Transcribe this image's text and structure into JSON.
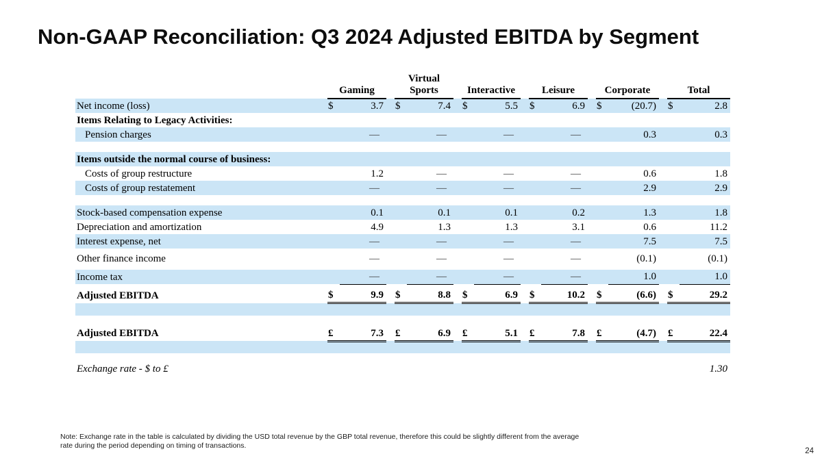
{
  "title": "Non-GAAP Reconciliation: Q3 2024 Adjusted EBITDA by Segment",
  "footnote": "Note: Exchange rate in the table is calculated by dividing the USD total revenue by the GBP total revenue, therefore this could be slightly different from the average rate during the period depending on timing of transactions.",
  "page_number": "24",
  "colors": {
    "row_shade": "#cbe5f6",
    "text": "#000000"
  },
  "table": {
    "columns": [
      {
        "name": "gaming",
        "lines": [
          "Gaming"
        ]
      },
      {
        "name": "virtual-sports",
        "lines": [
          "Virtual",
          "Sports"
        ]
      },
      {
        "name": "interactive",
        "lines": [
          "Interactive"
        ]
      },
      {
        "name": "leisure",
        "lines": [
          "Leisure"
        ]
      },
      {
        "name": "corporate",
        "lines": [
          "Corporate"
        ]
      },
      {
        "name": "total",
        "lines": [
          "Total"
        ]
      }
    ],
    "rows": [
      {
        "name": "net-income",
        "label": "Net income (loss)",
        "shade": true,
        "cur": "$",
        "cells": [
          "3.7",
          "7.4",
          "5.5",
          "6.9",
          "(20.7)",
          "2.8"
        ]
      },
      {
        "name": "legacy-header",
        "label": "Items Relating to Legacy Activities:",
        "bold": true,
        "shade": false,
        "cells": [
          "",
          "",
          "",
          "",
          "",
          ""
        ]
      },
      {
        "name": "pension-charges",
        "label": "Pension charges",
        "indent": true,
        "shade": true,
        "cells": [
          "—",
          "—",
          "—",
          "—",
          "0.3",
          "0.3"
        ]
      },
      {
        "type": "gap",
        "height": 15
      },
      {
        "name": "outside-header",
        "label": "Items outside the normal course of business:",
        "bold": true,
        "shade": true,
        "cells": [
          "",
          "",
          "",
          "",
          "",
          ""
        ]
      },
      {
        "name": "group-restructure",
        "label": "Costs of group restructure",
        "indent": true,
        "shade": false,
        "cells": [
          "1.2",
          "—",
          "—",
          "—",
          "0.6",
          "1.8"
        ]
      },
      {
        "name": "group-restatement",
        "label": "Costs of group restatement",
        "indent": true,
        "shade": true,
        "cells": [
          "—",
          "—",
          "—",
          "—",
          "2.9",
          "2.9"
        ]
      },
      {
        "type": "gap",
        "height": 15
      },
      {
        "name": "stock-comp",
        "label": "Stock-based compensation expense",
        "shade": true,
        "cells": [
          "0.1",
          "0.1",
          "0.1",
          "0.2",
          "1.3",
          "1.8"
        ]
      },
      {
        "name": "depreciation-amortization",
        "label": "Depreciation and amortization",
        "shade": false,
        "cells": [
          "4.9",
          "1.3",
          "1.3",
          "3.1",
          "0.6",
          "11.2"
        ]
      },
      {
        "name": "interest-expense",
        "label": "Interest expense, net",
        "shade": true,
        "cells": [
          "—",
          "—",
          "—",
          "—",
          "7.5",
          "7.5"
        ]
      },
      {
        "type": "gap",
        "height": 4
      },
      {
        "name": "other-finance-income",
        "label": "Other finance income",
        "shade": false,
        "cells": [
          "—",
          "—",
          "—",
          "—",
          "(0.1)",
          "(0.1)"
        ]
      },
      {
        "type": "gap",
        "height": 6
      },
      {
        "name": "income-tax",
        "label": "Income tax",
        "shade": true,
        "underline": "single",
        "cells": [
          "—",
          "—",
          "—",
          "—",
          "1.0",
          "1.0"
        ]
      },
      {
        "type": "gap",
        "height": 6
      },
      {
        "name": "adjusted-ebitda-usd",
        "label": "Adjusted EBITDA",
        "bold": true,
        "shade": false,
        "cur": "$",
        "underline": "double",
        "cells": [
          "9.9",
          "8.8",
          "6.9",
          "10.2",
          "(6.6)",
          "29.2"
        ]
      },
      {
        "type": "band",
        "height": 18
      },
      {
        "type": "gap",
        "height": 16
      },
      {
        "name": "adjusted-ebitda-gbp",
        "label": "Adjusted EBITDA",
        "bold": true,
        "shade": false,
        "cur": "£",
        "underline": "double",
        "cells": [
          "7.3",
          "6.9",
          "5.1",
          "7.8",
          "(4.7)",
          "22.4"
        ]
      },
      {
        "type": "band",
        "height": 18
      },
      {
        "type": "gap",
        "height": 12
      },
      {
        "name": "exchange-rate",
        "label": "Exchange rate - $ to £",
        "italic": true,
        "shade": false,
        "cells": [
          "",
          "",
          "",
          "",
          "",
          "1.30"
        ]
      }
    ]
  }
}
